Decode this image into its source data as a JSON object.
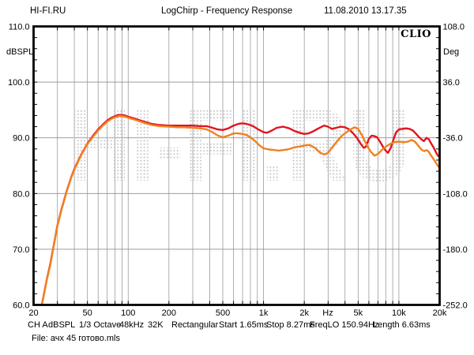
{
  "header": {
    "site": "HI-FI.RU",
    "title": "LogChirp - Frequency Response",
    "datetime": "11.08.2010 13.17.35"
  },
  "chart": {
    "brand": "CLIO",
    "watermark": "HI-FI.RU",
    "left_axis": {
      "unit": "dBSPL",
      "ticks": [
        "110.0",
        "100.0",
        "90.0",
        "80.0",
        "70.0",
        "60.0"
      ]
    },
    "right_axis": {
      "unit": "Deg",
      "ticks": [
        "108.0",
        "36.0",
        "-36.0",
        "-108.0",
        "-180.0",
        "-252.0"
      ]
    },
    "x_axis": {
      "unit": "Hz",
      "ticks": [
        "20",
        "50",
        "100",
        "200",
        "500",
        "1k",
        "2k",
        "5k",
        "10k",
        "20k"
      ]
    },
    "colors": {
      "curve_red": "#e2141e",
      "curve_orange": "#f08120",
      "grid": "#9b9b9b",
      "frame": "#000000",
      "watermark_dot": "#c8c8c8"
    }
  },
  "chart_data": {
    "type": "line",
    "title": "LogChirp - Frequency Response",
    "xlabel": "Hz",
    "ylabel_left": "dBSPL",
    "ylabel_right": "Deg",
    "x_scale": "log",
    "xlim": [
      20,
      20000
    ],
    "ylim_left": [
      60,
      110
    ],
    "ylim_right": [
      -252,
      108
    ],
    "grid": true,
    "legend": "none",
    "series": [
      {
        "name": "response-red",
        "color": "#e2141e",
        "unit": "dBSPL",
        "points": [
          [
            23,
            60
          ],
          [
            24,
            62.3
          ],
          [
            25,
            64.5
          ],
          [
            26.5,
            67.2
          ],
          [
            28,
            70.3
          ],
          [
            30,
            74.3
          ],
          [
            32,
            77.0
          ],
          [
            35,
            80.3
          ],
          [
            38,
            83.0
          ],
          [
            40,
            84.4
          ],
          [
            45,
            87.0
          ],
          [
            50,
            89.0
          ],
          [
            55,
            90.4
          ],
          [
            60,
            91.5
          ],
          [
            65,
            92.4
          ],
          [
            70,
            93.1
          ],
          [
            75,
            93.6
          ],
          [
            80,
            93.9
          ],
          [
            85,
            94.1
          ],
          [
            90,
            94.1
          ],
          [
            95,
            94.0
          ],
          [
            100,
            93.8
          ],
          [
            110,
            93.5
          ],
          [
            120,
            93.2
          ],
          [
            135,
            92.8
          ],
          [
            150,
            92.5
          ],
          [
            170,
            92.3
          ],
          [
            200,
            92.2
          ],
          [
            230,
            92.2
          ],
          [
            260,
            92.2
          ],
          [
            300,
            92.2
          ],
          [
            340,
            92.1
          ],
          [
            380,
            92.1
          ],
          [
            420,
            91.8
          ],
          [
            460,
            91.5
          ],
          [
            500,
            91.4
          ],
          [
            550,
            91.7
          ],
          [
            600,
            92.2
          ],
          [
            650,
            92.5
          ],
          [
            700,
            92.6
          ],
          [
            750,
            92.5
          ],
          [
            800,
            92.3
          ],
          [
            850,
            92.0
          ],
          [
            900,
            91.6
          ],
          [
            950,
            91.3
          ],
          [
            1000,
            91.0
          ],
          [
            1060,
            90.9
          ],
          [
            1150,
            91.3
          ],
          [
            1250,
            91.8
          ],
          [
            1400,
            92.0
          ],
          [
            1550,
            91.7
          ],
          [
            1700,
            91.2
          ],
          [
            1850,
            90.9
          ],
          [
            2000,
            90.7
          ],
          [
            2150,
            90.8
          ],
          [
            2300,
            91.1
          ],
          [
            2500,
            91.6
          ],
          [
            2800,
            92.2
          ],
          [
            3000,
            92.0
          ],
          [
            3200,
            91.6
          ],
          [
            3450,
            91.8
          ],
          [
            3700,
            92.0
          ],
          [
            4000,
            91.9
          ],
          [
            4300,
            91.5
          ],
          [
            4600,
            90.8
          ],
          [
            4900,
            90.0
          ],
          [
            5200,
            89.0
          ],
          [
            5500,
            88.2
          ],
          [
            5700,
            88.4
          ],
          [
            6000,
            89.8
          ],
          [
            6300,
            90.4
          ],
          [
            6600,
            90.3
          ],
          [
            6900,
            90.1
          ],
          [
            7300,
            89.2
          ],
          [
            7700,
            88.2
          ],
          [
            8000,
            87.7
          ],
          [
            8300,
            87.3
          ],
          [
            8700,
            88.2
          ],
          [
            9100,
            89.6
          ],
          [
            9500,
            90.9
          ],
          [
            10000,
            91.5
          ],
          [
            10600,
            91.6
          ],
          [
            11300,
            91.7
          ],
          [
            12000,
            91.6
          ],
          [
            12700,
            91.3
          ],
          [
            13300,
            90.8
          ],
          [
            14000,
            90.2
          ],
          [
            14700,
            89.7
          ],
          [
            15300,
            89.4
          ],
          [
            16000,
            90.0
          ],
          [
            16700,
            89.7
          ],
          [
            17300,
            89.0
          ],
          [
            18000,
            88.3
          ],
          [
            18700,
            87.5
          ],
          [
            19300,
            86.9
          ],
          [
            20000,
            86.5
          ]
        ]
      },
      {
        "name": "response-orange",
        "color": "#f08120",
        "unit": "dBSPL",
        "points": [
          [
            23,
            60
          ],
          [
            24,
            62.2
          ],
          [
            25,
            64.4
          ],
          [
            26.5,
            67.0
          ],
          [
            28,
            70.2
          ],
          [
            30,
            74.2
          ],
          [
            32,
            76.9
          ],
          [
            35,
            80.2
          ],
          [
            38,
            82.9
          ],
          [
            40,
            84.3
          ],
          [
            45,
            86.9
          ],
          [
            50,
            88.9
          ],
          [
            55,
            90.2
          ],
          [
            60,
            91.3
          ],
          [
            65,
            92.2
          ],
          [
            70,
            92.9
          ],
          [
            75,
            93.4
          ],
          [
            80,
            93.7
          ],
          [
            85,
            93.9
          ],
          [
            90,
            93.9
          ],
          [
            95,
            93.8
          ],
          [
            100,
            93.6
          ],
          [
            110,
            93.3
          ],
          [
            120,
            93.0
          ],
          [
            135,
            92.6
          ],
          [
            150,
            92.3
          ],
          [
            170,
            92.1
          ],
          [
            200,
            92.0
          ],
          [
            230,
            91.9
          ],
          [
            260,
            91.9
          ],
          [
            300,
            91.8
          ],
          [
            340,
            91.7
          ],
          [
            380,
            91.5
          ],
          [
            420,
            91.0
          ],
          [
            460,
            90.4
          ],
          [
            500,
            90.1
          ],
          [
            550,
            90.4
          ],
          [
            600,
            90.8
          ],
          [
            650,
            90.8
          ],
          [
            700,
            90.7
          ],
          [
            750,
            90.5
          ],
          [
            800,
            90.1
          ],
          [
            850,
            89.6
          ],
          [
            900,
            89.0
          ],
          [
            950,
            88.5
          ],
          [
            1000,
            88.1
          ],
          [
            1100,
            87.9
          ],
          [
            1200,
            87.8
          ],
          [
            1300,
            87.7
          ],
          [
            1400,
            87.8
          ],
          [
            1500,
            87.9
          ],
          [
            1600,
            88.1
          ],
          [
            1700,
            88.3
          ],
          [
            1800,
            88.4
          ],
          [
            1900,
            88.5
          ],
          [
            2000,
            88.6
          ],
          [
            2100,
            88.7
          ],
          [
            2200,
            88.7
          ],
          [
            2400,
            88.2
          ],
          [
            2600,
            87.4
          ],
          [
            2800,
            87.0
          ],
          [
            3000,
            87.3
          ],
          [
            3200,
            88.2
          ],
          [
            3500,
            89.4
          ],
          [
            3800,
            90.4
          ],
          [
            4100,
            91.0
          ],
          [
            4400,
            91.5
          ],
          [
            4700,
            91.9
          ],
          [
            5000,
            91.6
          ],
          [
            5300,
            90.6
          ],
          [
            5600,
            89.4
          ],
          [
            5900,
            88.3
          ],
          [
            6200,
            87.5
          ],
          [
            6600,
            86.8
          ],
          [
            7000,
            87.1
          ],
          [
            7400,
            87.7
          ],
          [
            8000,
            88.4
          ],
          [
            8600,
            88.9
          ],
          [
            9200,
            89.2
          ],
          [
            10000,
            89.3
          ],
          [
            10800,
            89.2
          ],
          [
            11600,
            89.3
          ],
          [
            12400,
            89.6
          ],
          [
            13000,
            89.4
          ],
          [
            13600,
            88.9
          ],
          [
            14200,
            88.3
          ],
          [
            14800,
            87.8
          ],
          [
            15400,
            87.6
          ],
          [
            16000,
            87.8
          ],
          [
            16600,
            87.5
          ],
          [
            17200,
            86.9
          ],
          [
            18000,
            86.2
          ],
          [
            18800,
            85.5
          ],
          [
            19500,
            84.9
          ],
          [
            20000,
            84.6
          ]
        ]
      }
    ]
  },
  "status_bar": {
    "items": [
      "CH A",
      "dBSPL",
      "1/3 Octave",
      "48kHz",
      "32K",
      "Rectangular",
      "Start 1.65ms",
      "Stop 8.27ms",
      "FreqLO 150.94Hz",
      "Length 6.63ms"
    ]
  },
  "file_line": "File: ачх 45 готово.mls"
}
